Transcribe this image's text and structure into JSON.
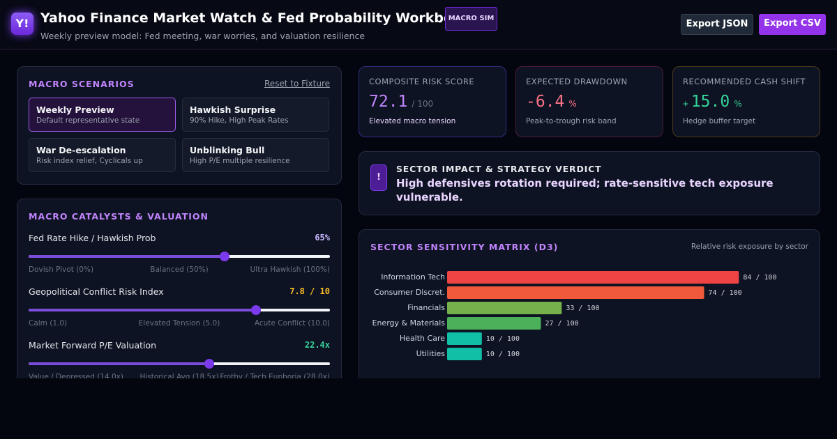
{
  "header": {
    "logo": "Y!",
    "title": "Yahoo Finance Market Watch & Fed Probability Workbench",
    "badge": "MACRO SIM",
    "subtitle": "Weekly preview model: Fed meeting, war worries, and valuation resilience",
    "buttons": [
      "Export JSON",
      "Export CSV"
    ]
  },
  "scenarios": {
    "title": "MACRO SCENARIOS",
    "reset": "Reset to Fixture",
    "items": [
      {
        "name": "Weekly Preview",
        "desc": "Default representative state"
      },
      {
        "name": "Hawkish Surprise",
        "desc": "90% Hike, High Peak Rates"
      },
      {
        "name": "War De-escalation",
        "desc": "Risk index relief, Cyclicals up"
      },
      {
        "name": "Unblinking Bull",
        "desc": "High P/E multiple resilience"
      }
    ]
  },
  "catalysts": {
    "title": "MACRO CATALYSTS & VALUATION",
    "sliders": [
      {
        "label": "Fed Rate Hike / Hawkish Prob",
        "value": 65,
        "value_label": "65%",
        "range": [
          0,
          100
        ],
        "scale_labels": [
          "Dovish Pivot (0%)",
          "Balanced (50%)",
          "Ultra Hawkish (100%)"
        ],
        "color": "#c4b5fd"
      },
      {
        "label": "Geopolitical Conflict Risk Index",
        "value": 7.8,
        "value_label": "7.8 / 10",
        "range": [
          1,
          10
        ],
        "scale_labels": [
          "Calm (1.0)",
          "Elevated Tension (5.0)",
          "Acute Conflict (10.0)"
        ],
        "color": "#fbbf24"
      },
      {
        "label": "Market Forward P/E Valuation",
        "value": 22.4,
        "value_label": "22.4x",
        "range": [
          14,
          28
        ],
        "scale_labels": [
          "Value / Depressed (14.0x)",
          "Historical Avg (18.5x)",
          "Frothy / Tech Euphoria (28.0x)"
        ],
        "color": "#34d399"
      }
    ]
  },
  "metrics": [
    {
      "label": "COMPOSITE RISK SCORE",
      "value": "72.1",
      "unit": "/ 100",
      "note": "Elevated macro tension",
      "color": "#c084fc"
    },
    {
      "label": "EXPECTED DRAWDOWN",
      "value": "-6.4",
      "unit": "%",
      "note": "Peak-to-trough risk band",
      "color": "#fb7185"
    },
    {
      "label": "RECOMMENDED CASH SHIFT",
      "sign": "+",
      "value": "15.0",
      "unit": "%",
      "note": "Hedge buffer target",
      "color": "#34d399"
    }
  ],
  "verdict": {
    "icon": "!",
    "title": "SECTOR IMPACT & STRATEGY VERDICT",
    "text": "High defensives rotation required; rate-sensitive tech exposure vulnerable."
  },
  "chart_data": {
    "type": "bar",
    "orientation": "horizontal",
    "title": "SECTOR SENSITIVITY MATRIX (D3)",
    "subtitle": "Relative risk exposure by sector",
    "categories": [
      "Information Tech",
      "Consumer Discret.",
      "Financials",
      "Energy & Materials",
      "Health Care",
      "Utilities"
    ],
    "values": [
      84,
      74,
      33,
      27,
      10,
      10
    ],
    "value_labels": [
      "84 / 100",
      "74 / 100",
      "33 / 100",
      "27 / 100",
      "10 / 100",
      "10 / 100"
    ],
    "colors": [
      "#ef4444",
      "#f05a3a",
      "#76b04a",
      "#4caf5a",
      "#10bfa6",
      "#10bfa6"
    ],
    "xlim": [
      0,
      100
    ]
  }
}
